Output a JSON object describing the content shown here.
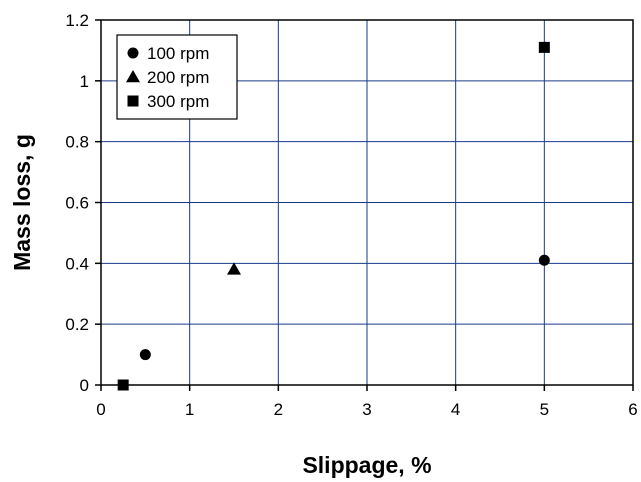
{
  "chart_data": {
    "type": "scatter",
    "title": "",
    "xlabel": "Slippage, %",
    "ylabel": "Mass loss, g",
    "xlim": [
      0,
      6
    ],
    "ylim": [
      0,
      1.2
    ],
    "xticks": [
      "0",
      "1",
      "2",
      "3",
      "4",
      "5",
      "6"
    ],
    "yticks": [
      "0",
      "0.2",
      "0.4",
      "0.6",
      "0.8",
      "1",
      "1.2"
    ],
    "grid": true,
    "legend_position": "top-left",
    "series": [
      {
        "name": "100 rpm",
        "marker": "circle",
        "color": "#000000",
        "points": [
          {
            "x": 0.5,
            "y": 0.1
          },
          {
            "x": 5.0,
            "y": 0.41
          }
        ]
      },
      {
        "name": "200 rpm",
        "marker": "triangle",
        "color": "#000000",
        "points": [
          {
            "x": 1.5,
            "y": 0.38
          }
        ]
      },
      {
        "name": "300 rpm",
        "marker": "square",
        "color": "#000000",
        "points": [
          {
            "x": 0.25,
            "y": 0.0
          },
          {
            "x": 5.0,
            "y": 1.11
          }
        ]
      }
    ]
  }
}
